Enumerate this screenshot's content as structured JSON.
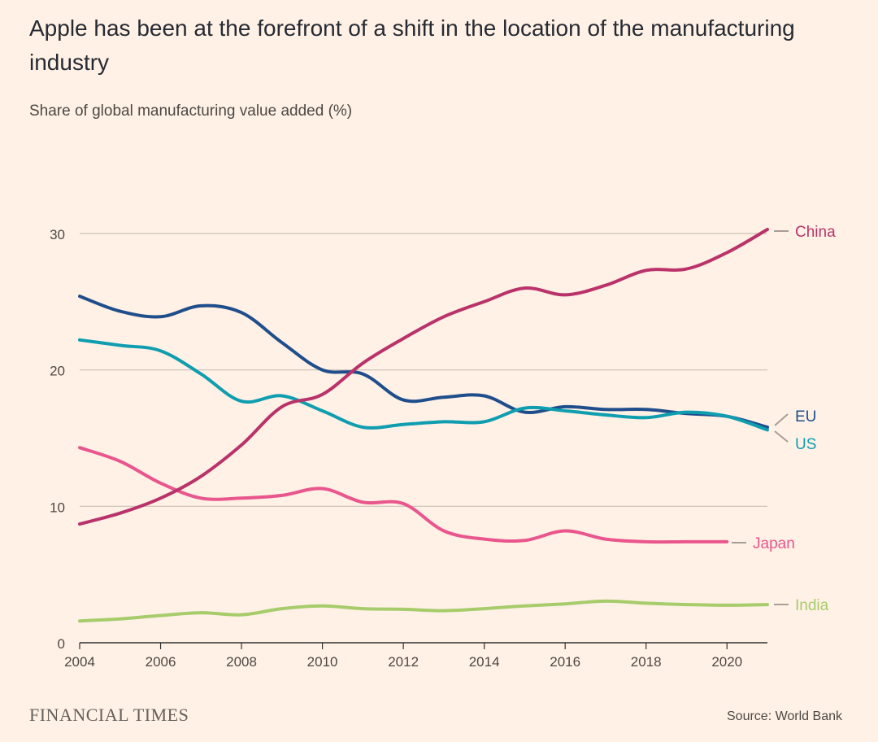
{
  "header": {
    "title": "Apple has been at the forefront of a shift in the location of the manufacturing industry",
    "subtitle": "Share of global manufacturing value added (%)"
  },
  "footer": {
    "brand": "FINANCIAL TIMES",
    "source": "Source: World Bank"
  },
  "chart_data": {
    "type": "line",
    "title": "Apple has been at the forefront of a shift in the location of the manufacturing industry",
    "subtitle": "Share of global manufacturing value added (%)",
    "xlabel": "",
    "ylabel": "Share of global manufacturing value added (%)",
    "xlim": [
      2004,
      2021
    ],
    "ylim": [
      0,
      30
    ],
    "grid": true,
    "x_ticks": [
      2004,
      2006,
      2008,
      2010,
      2012,
      2014,
      2016,
      2018,
      2020
    ],
    "y_ticks": [
      0,
      10,
      20,
      30
    ],
    "legend": "inline labels at right end of each line",
    "series": [
      {
        "name": "China",
        "color": "#b9336a",
        "x": [
          2004,
          2005,
          2006,
          2007,
          2008,
          2009,
          2010,
          2011,
          2012,
          2013,
          2014,
          2015,
          2016,
          2017,
          2018,
          2019,
          2020,
          2021
        ],
        "values": [
          8.7,
          9.5,
          10.6,
          12.2,
          14.5,
          17.3,
          18.2,
          20.5,
          22.3,
          23.9,
          25.0,
          26.0,
          25.5,
          26.2,
          27.3,
          27.4,
          28.6,
          30.3
        ]
      },
      {
        "name": "EU",
        "color": "#1f4e8c",
        "x": [
          2004,
          2005,
          2006,
          2007,
          2008,
          2009,
          2010,
          2011,
          2012,
          2013,
          2014,
          2015,
          2016,
          2017,
          2018,
          2019,
          2020,
          2021
        ],
        "values": [
          25.4,
          24.3,
          23.9,
          24.7,
          24.2,
          22.0,
          20.0,
          19.7,
          17.8,
          18.0,
          18.1,
          16.9,
          17.3,
          17.1,
          17.1,
          16.8,
          16.6,
          15.8
        ]
      },
      {
        "name": "US",
        "color": "#0f9db0",
        "x": [
          2004,
          2005,
          2006,
          2007,
          2008,
          2009,
          2010,
          2011,
          2012,
          2013,
          2014,
          2015,
          2016,
          2017,
          2018,
          2019,
          2020,
          2021
        ],
        "values": [
          22.2,
          21.8,
          21.4,
          19.7,
          17.7,
          18.1,
          17.0,
          15.8,
          16.0,
          16.2,
          16.2,
          17.2,
          17.0,
          16.7,
          16.5,
          16.9,
          16.6,
          15.6
        ]
      },
      {
        "name": "Japan",
        "color": "#e9558d",
        "x": [
          2004,
          2005,
          2006,
          2007,
          2008,
          2009,
          2010,
          2011,
          2012,
          2013,
          2014,
          2015,
          2016,
          2017,
          2018,
          2019,
          2020
        ],
        "values": [
          14.3,
          13.3,
          11.7,
          10.6,
          10.6,
          10.8,
          11.3,
          10.3,
          10.2,
          8.2,
          7.6,
          7.5,
          8.2,
          7.6,
          7.4,
          7.4,
          7.4
        ]
      },
      {
        "name": "India",
        "color": "#a6cc6b",
        "x": [
          2004,
          2005,
          2006,
          2007,
          2008,
          2009,
          2010,
          2011,
          2012,
          2013,
          2014,
          2015,
          2016,
          2017,
          2018,
          2019,
          2020,
          2021
        ],
        "values": [
          1.6,
          1.75,
          2.0,
          2.2,
          2.05,
          2.5,
          2.7,
          2.5,
          2.45,
          2.35,
          2.5,
          2.7,
          2.85,
          3.05,
          2.9,
          2.8,
          2.75,
          2.8
        ]
      }
    ]
  }
}
